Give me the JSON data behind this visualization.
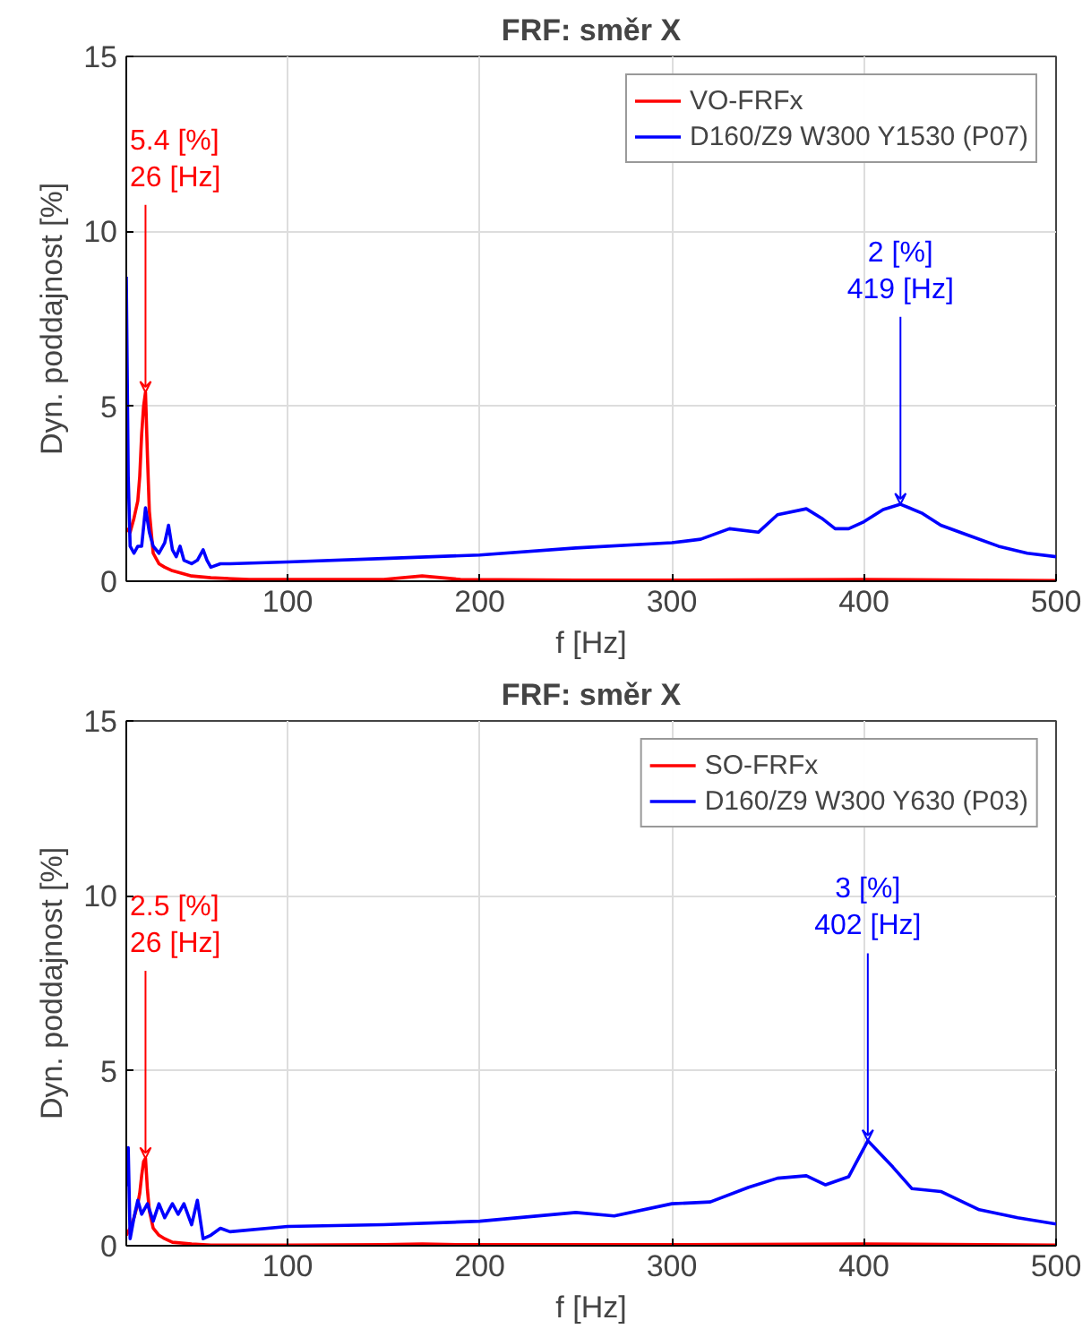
{
  "chart_data": [
    {
      "type": "line",
      "title": "FRF: směr X",
      "xlabel": "f [Hz]",
      "ylabel": "Dyn. poddajnost [%]",
      "xlim": [
        16,
        500
      ],
      "ylim": [
        0,
        15
      ],
      "xticks": [
        100,
        200,
        300,
        400,
        500
      ],
      "yticks": [
        0,
        5,
        10,
        15
      ],
      "grid": true,
      "legend": "top right",
      "series": [
        {
          "name": "VO-FRFx",
          "color": "#ff0000",
          "x": [
            16,
            18,
            20,
            22,
            23,
            24,
            25,
            26,
            27,
            28,
            30,
            33,
            36,
            40,
            50,
            60,
            80,
            100,
            150,
            170,
            190,
            250,
            300,
            400,
            500
          ],
          "values": [
            1.5,
            1.4,
            1.8,
            2.3,
            3.0,
            4.2,
            5.0,
            5.4,
            3.6,
            2.0,
            0.8,
            0.5,
            0.4,
            0.3,
            0.15,
            0.1,
            0.05,
            0.05,
            0.05,
            0.15,
            0.05,
            0.03,
            0.03,
            0.05,
            0.02
          ]
        },
        {
          "name": "D160/Z9 W300 Y1530 (P07)",
          "color": "#0000ff",
          "x": [
            16,
            17,
            18,
            20,
            22,
            24,
            26,
            28,
            30,
            33,
            36,
            38,
            40,
            42,
            44,
            46,
            50,
            53,
            56,
            58,
            60,
            65,
            70,
            100,
            150,
            200,
            250,
            300,
            315,
            330,
            345,
            355,
            370,
            378,
            385,
            392,
            400,
            410,
            419,
            430,
            440,
            455,
            470,
            485,
            500
          ],
          "values": [
            8.7,
            3.0,
            1.0,
            0.8,
            1.0,
            1.0,
            2.1,
            1.4,
            1.0,
            0.8,
            1.1,
            1.6,
            0.9,
            0.7,
            1.0,
            0.6,
            0.5,
            0.6,
            0.9,
            0.6,
            0.4,
            0.5,
            0.5,
            0.55,
            0.65,
            0.75,
            0.95,
            1.1,
            1.2,
            1.5,
            1.4,
            1.9,
            2.07,
            1.8,
            1.5,
            1.5,
            1.7,
            2.05,
            2.2,
            1.95,
            1.6,
            1.3,
            1.0,
            0.8,
            0.7
          ]
        }
      ],
      "annotations": [
        {
          "text": "5.4 [%]\n26 [Hz]",
          "x": 26,
          "y": 5.4
        },
        {
          "text": "2 [%]\n419 [Hz]",
          "x": 419,
          "y": 2.2
        }
      ]
    },
    {
      "type": "line",
      "title": "FRF: směr X",
      "xlabel": "f [Hz]",
      "ylabel": "Dyn. poddajnost [%]",
      "xlim": [
        16,
        500
      ],
      "ylim": [
        0,
        15
      ],
      "xticks": [
        100,
        200,
        300,
        400,
        500
      ],
      "yticks": [
        0,
        5,
        10,
        15
      ],
      "grid": true,
      "legend": "top right",
      "series": [
        {
          "name": "SO-FRFx",
          "color": "#ff0000",
          "x": [
            16,
            18,
            20,
            22,
            23,
            24,
            25,
            26,
            27,
            28,
            30,
            33,
            36,
            40,
            50,
            60,
            80,
            100,
            150,
            170,
            190,
            250,
            300,
            400,
            500
          ],
          "values": [
            0.3,
            0.5,
            0.8,
            1.2,
            1.5,
            2.0,
            2.4,
            2.5,
            1.6,
            1.0,
            0.5,
            0.3,
            0.2,
            0.1,
            0.05,
            0.02,
            0.02,
            0.02,
            0.03,
            0.05,
            0.03,
            0.03,
            0.03,
            0.05,
            0.02
          ]
        },
        {
          "name": "D160/Z9 W300 Y630 (P03)",
          "color": "#0000ff",
          "x": [
            16,
            17,
            18,
            20,
            22,
            24,
            27,
            30,
            33,
            36,
            40,
            43,
            46,
            50,
            53,
            56,
            60,
            65,
            70,
            100,
            150,
            200,
            250,
            270,
            300,
            320,
            340,
            355,
            370,
            380,
            392,
            402,
            415,
            425,
            440,
            460,
            480,
            500
          ],
          "values": [
            1.7,
            2.8,
            0.2,
            0.8,
            1.3,
            0.9,
            1.2,
            0.7,
            1.2,
            0.8,
            1.2,
            0.9,
            1.2,
            0.6,
            1.3,
            0.2,
            0.3,
            0.5,
            0.4,
            0.55,
            0.6,
            0.7,
            0.95,
            0.85,
            1.2,
            1.25,
            1.67,
            1.93,
            2.0,
            1.74,
            1.97,
            3.0,
            2.25,
            1.63,
            1.55,
            1.03,
            0.8,
            0.62
          ]
        }
      ],
      "annotations": [
        {
          "text": "2.5 [%]\n26 [Hz]",
          "x": 26,
          "y": 2.5
        },
        {
          "text": "3 [%]\n402 [Hz]",
          "x": 402,
          "y": 3.0
        }
      ]
    }
  ]
}
